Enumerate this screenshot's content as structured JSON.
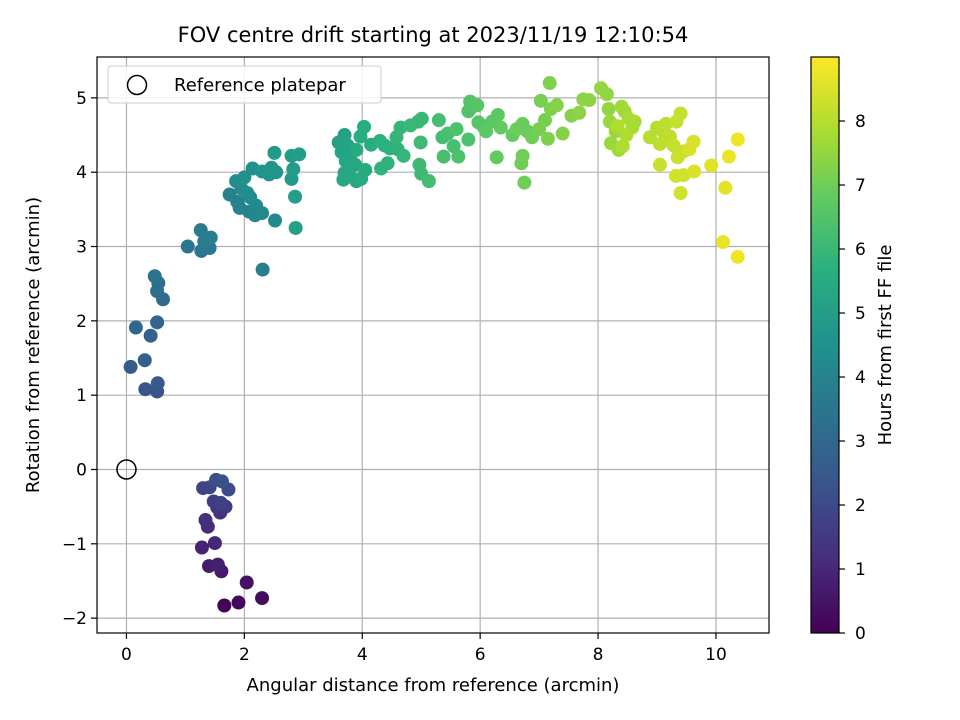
{
  "chart_data": {
    "type": "scatter",
    "title": "FOV centre drift starting at 2023/11/19 12:10:54",
    "xlabel": "Angular distance from reference (arcmin)",
    "ylabel": "Rotation from reference (arcmin)",
    "xlim": [
      -0.5,
      10.9
    ],
    "ylim": [
      -2.2,
      5.55
    ],
    "xticks": [
      "0",
      "2",
      "4",
      "6",
      "8",
      "10"
    ],
    "yticks": [
      "−2",
      "−1",
      "0",
      "1",
      "2",
      "3",
      "4",
      "5"
    ],
    "grid": true,
    "legend": {
      "placement": "top-left",
      "entries": [
        "Reference platepar"
      ]
    },
    "reference_point": {
      "x": 0,
      "y": 0,
      "label": "Reference platepar"
    },
    "colorbar": {
      "label": "Hours from first FF file",
      "colormap": "viridis",
      "range": [
        0,
        9
      ],
      "ticks": [
        "0",
        "1",
        "2",
        "3",
        "4",
        "5",
        "6",
        "7",
        "8"
      ]
    },
    "points": [
      [
        1.66,
        -1.83,
        0.1
      ],
      [
        1.9,
        -1.79,
        0.2
      ],
      [
        2.3,
        -1.73,
        0.3
      ],
      [
        2.04,
        -1.52,
        0.4
      ],
      [
        1.61,
        -1.37,
        0.6
      ],
      [
        1.4,
        -1.3,
        0.7
      ],
      [
        1.55,
        -1.28,
        0.8
      ],
      [
        1.28,
        -1.05,
        0.9
      ],
      [
        1.5,
        -0.99,
        1.0
      ],
      [
        1.38,
        -0.77,
        1.1
      ],
      [
        1.34,
        -0.68,
        1.2
      ],
      [
        1.59,
        -0.58,
        1.3
      ],
      [
        1.54,
        -0.51,
        1.4
      ],
      [
        1.68,
        -0.5,
        1.5
      ],
      [
        1.48,
        -0.43,
        1.6
      ],
      [
        1.6,
        -0.45,
        1.7
      ],
      [
        1.3,
        -0.25,
        1.8
      ],
      [
        1.41,
        -0.24,
        1.9
      ],
      [
        1.73,
        -0.27,
        2.0
      ],
      [
        1.52,
        -0.14,
        2.1
      ],
      [
        1.62,
        -0.16,
        2.2
      ],
      [
        0.52,
        1.05,
        2.3
      ],
      [
        0.32,
        1.08,
        2.4
      ],
      [
        0.53,
        1.16,
        2.5
      ],
      [
        0.07,
        1.38,
        2.6
      ],
      [
        0.31,
        1.47,
        2.7
      ],
      [
        0.41,
        1.8,
        2.8
      ],
      [
        0.52,
        1.98,
        2.9
      ],
      [
        0.16,
        1.91,
        3.0
      ],
      [
        0.62,
        2.29,
        3.1
      ],
      [
        0.52,
        2.4,
        3.2
      ],
      [
        0.54,
        2.51,
        3.3
      ],
      [
        0.48,
        2.6,
        3.4
      ],
      [
        1.04,
        3.0,
        3.5
      ],
      [
        1.27,
        2.94,
        3.6
      ],
      [
        1.41,
        2.98,
        3.6
      ],
      [
        1.32,
        3.07,
        3.7
      ],
      [
        1.26,
        3.22,
        3.7
      ],
      [
        2.31,
        2.69,
        3.8
      ],
      [
        1.43,
        3.12,
        3.8
      ],
      [
        1.75,
        3.7,
        3.9
      ],
      [
        1.88,
        3.6,
        3.9
      ],
      [
        1.92,
        3.52,
        4.0
      ],
      [
        2.08,
        3.47,
        4.0
      ],
      [
        2.18,
        3.42,
        4.1
      ],
      [
        2.3,
        3.45,
        4.1
      ],
      [
        2.52,
        3.35,
        4.2
      ],
      [
        2.2,
        3.55,
        4.2
      ],
      [
        2.1,
        3.66,
        4.3
      ],
      [
        1.95,
        3.78,
        4.3
      ],
      [
        2.05,
        3.72,
        4.4
      ],
      [
        1.86,
        3.88,
        4.4
      ],
      [
        2.0,
        3.93,
        4.5
      ],
      [
        2.14,
        4.05,
        4.5
      ],
      [
        2.3,
        4.01,
        4.6
      ],
      [
        2.42,
        3.97,
        4.6
      ],
      [
        2.54,
        4.0,
        4.7
      ],
      [
        2.46,
        4.06,
        4.7
      ],
      [
        2.51,
        4.26,
        4.8
      ],
      [
        2.8,
        3.91,
        4.8
      ],
      [
        2.83,
        4.04,
        4.9
      ],
      [
        2.8,
        4.22,
        4.9
      ],
      [
        2.93,
        4.24,
        5.0
      ],
      [
        2.86,
        3.67,
        5.0
      ],
      [
        2.87,
        3.25,
        5.1
      ],
      [
        3.6,
        4.4,
        5.1
      ],
      [
        3.7,
        4.5,
        5.1
      ],
      [
        3.75,
        4.36,
        5.2
      ],
      [
        3.65,
        4.27,
        5.2
      ],
      [
        3.82,
        4.26,
        5.2
      ],
      [
        3.72,
        4.15,
        5.3
      ],
      [
        3.88,
        4.1,
        5.3
      ],
      [
        3.7,
        3.99,
        5.3
      ],
      [
        3.8,
        3.94,
        5.4
      ],
      [
        3.68,
        3.9,
        5.4
      ],
      [
        3.9,
        3.88,
        5.4
      ],
      [
        3.98,
        3.91,
        5.5
      ],
      [
        4.05,
        4.03,
        5.5
      ],
      [
        3.9,
        4.3,
        5.5
      ],
      [
        3.97,
        4.48,
        5.6
      ],
      [
        4.03,
        4.61,
        5.6
      ],
      [
        4.15,
        4.37,
        5.6
      ],
      [
        4.3,
        4.42,
        5.7
      ],
      [
        4.38,
        4.36,
        5.7
      ],
      [
        4.47,
        4.32,
        5.7
      ],
      [
        4.32,
        4.05,
        5.8
      ],
      [
        4.43,
        4.12,
        5.8
      ],
      [
        4.6,
        4.31,
        5.8
      ],
      [
        4.7,
        4.22,
        5.9
      ],
      [
        4.58,
        4.47,
        5.9
      ],
      [
        4.65,
        4.6,
        5.9
      ],
      [
        4.82,
        4.63,
        6.0
      ],
      [
        4.95,
        4.68,
        6.0
      ],
      [
        5.01,
        4.72,
        6.0
      ],
      [
        4.99,
        4.4,
        6.1
      ],
      [
        4.97,
        4.1,
        6.1
      ],
      [
        5.0,
        3.98,
        6.1
      ],
      [
        5.13,
        3.88,
        6.2
      ],
      [
        5.3,
        4.7,
        6.2
      ],
      [
        5.36,
        4.47,
        6.2
      ],
      [
        5.45,
        4.52,
        6.3
      ],
      [
        5.38,
        4.21,
        6.3
      ],
      [
        5.55,
        4.35,
        6.3
      ],
      [
        5.63,
        4.21,
        6.4
      ],
      [
        5.6,
        4.58,
        6.4
      ],
      [
        5.8,
        4.44,
        6.4
      ],
      [
        5.8,
        4.82,
        6.5
      ],
      [
        5.83,
        4.95,
        6.5
      ],
      [
        5.85,
        4.87,
        6.5
      ],
      [
        5.95,
        4.9,
        6.6
      ],
      [
        5.97,
        4.67,
        6.6
      ],
      [
        6.05,
        4.62,
        6.6
      ],
      [
        6.1,
        4.55,
        6.7
      ],
      [
        6.2,
        4.68,
        6.7
      ],
      [
        6.3,
        4.77,
        6.7
      ],
      [
        6.35,
        4.6,
        6.8
      ],
      [
        6.28,
        4.2,
        6.8
      ],
      [
        6.55,
        4.5,
        6.8
      ],
      [
        6.62,
        4.58,
        6.9
      ],
      [
        6.72,
        4.65,
        6.9
      ],
      [
        6.8,
        4.55,
        6.9
      ],
      [
        6.72,
        4.22,
        7.0
      ],
      [
        6.7,
        4.12,
        7.0
      ],
      [
        6.75,
        3.86,
        7.0
      ],
      [
        6.88,
        4.47,
        7.0
      ],
      [
        7.0,
        4.58,
        7.1
      ],
      [
        7.1,
        4.7,
        7.1
      ],
      [
        7.03,
        4.96,
        7.1
      ],
      [
        7.2,
        4.85,
        7.2
      ],
      [
        7.15,
        4.45,
        7.2
      ],
      [
        7.18,
        5.2,
        7.2
      ],
      [
        7.3,
        4.9,
        7.3
      ],
      [
        7.4,
        4.52,
        7.3
      ],
      [
        7.55,
        4.76,
        7.3
      ],
      [
        7.68,
        4.8,
        7.4
      ],
      [
        7.75,
        4.98,
        7.4
      ],
      [
        7.85,
        4.97,
        7.4
      ],
      [
        8.05,
        5.13,
        7.5
      ],
      [
        8.15,
        5.05,
        7.5
      ],
      [
        8.18,
        4.85,
        7.5
      ],
      [
        8.2,
        4.68,
        7.6
      ],
      [
        8.3,
        4.55,
        7.6
      ],
      [
        8.22,
        4.39,
        7.6
      ],
      [
        8.35,
        4.3,
        7.7
      ],
      [
        8.4,
        4.88,
        7.7
      ],
      [
        8.45,
        4.82,
        7.7
      ],
      [
        8.52,
        4.72,
        7.8
      ],
      [
        8.58,
        4.6,
        7.8
      ],
      [
        8.62,
        4.68,
        7.8
      ],
      [
        8.48,
        4.5,
        7.9
      ],
      [
        8.42,
        4.35,
        7.9
      ],
      [
        8.33,
        4.62,
        7.9
      ],
      [
        8.88,
        4.47,
        8.0
      ],
      [
        9.0,
        4.6,
        8.0
      ],
      [
        9.1,
        4.55,
        8.0
      ],
      [
        9.05,
        4.38,
        8.1
      ],
      [
        9.15,
        4.65,
        8.1
      ],
      [
        9.22,
        4.48,
        8.1
      ],
      [
        9.28,
        4.36,
        8.2
      ],
      [
        9.33,
        4.68,
        8.2
      ],
      [
        9.4,
        4.79,
        8.2
      ],
      [
        9.35,
        4.2,
        8.3
      ],
      [
        9.45,
        4.28,
        8.3
      ],
      [
        9.05,
        4.1,
        8.3
      ],
      [
        9.32,
        3.95,
        8.4
      ],
      [
        9.4,
        3.72,
        8.4
      ],
      [
        9.45,
        3.96,
        8.4
      ],
      [
        9.55,
        4.31,
        8.5
      ],
      [
        9.62,
        4.41,
        8.5
      ],
      [
        9.63,
        4.01,
        8.5
      ],
      [
        9.92,
        4.09,
        8.6
      ],
      [
        10.16,
        3.79,
        8.6
      ],
      [
        10.22,
        4.21,
        8.7
      ],
      [
        10.12,
        3.06,
        8.7
      ],
      [
        10.37,
        2.86,
        8.8
      ],
      [
        10.37,
        4.44,
        8.8
      ]
    ]
  }
}
